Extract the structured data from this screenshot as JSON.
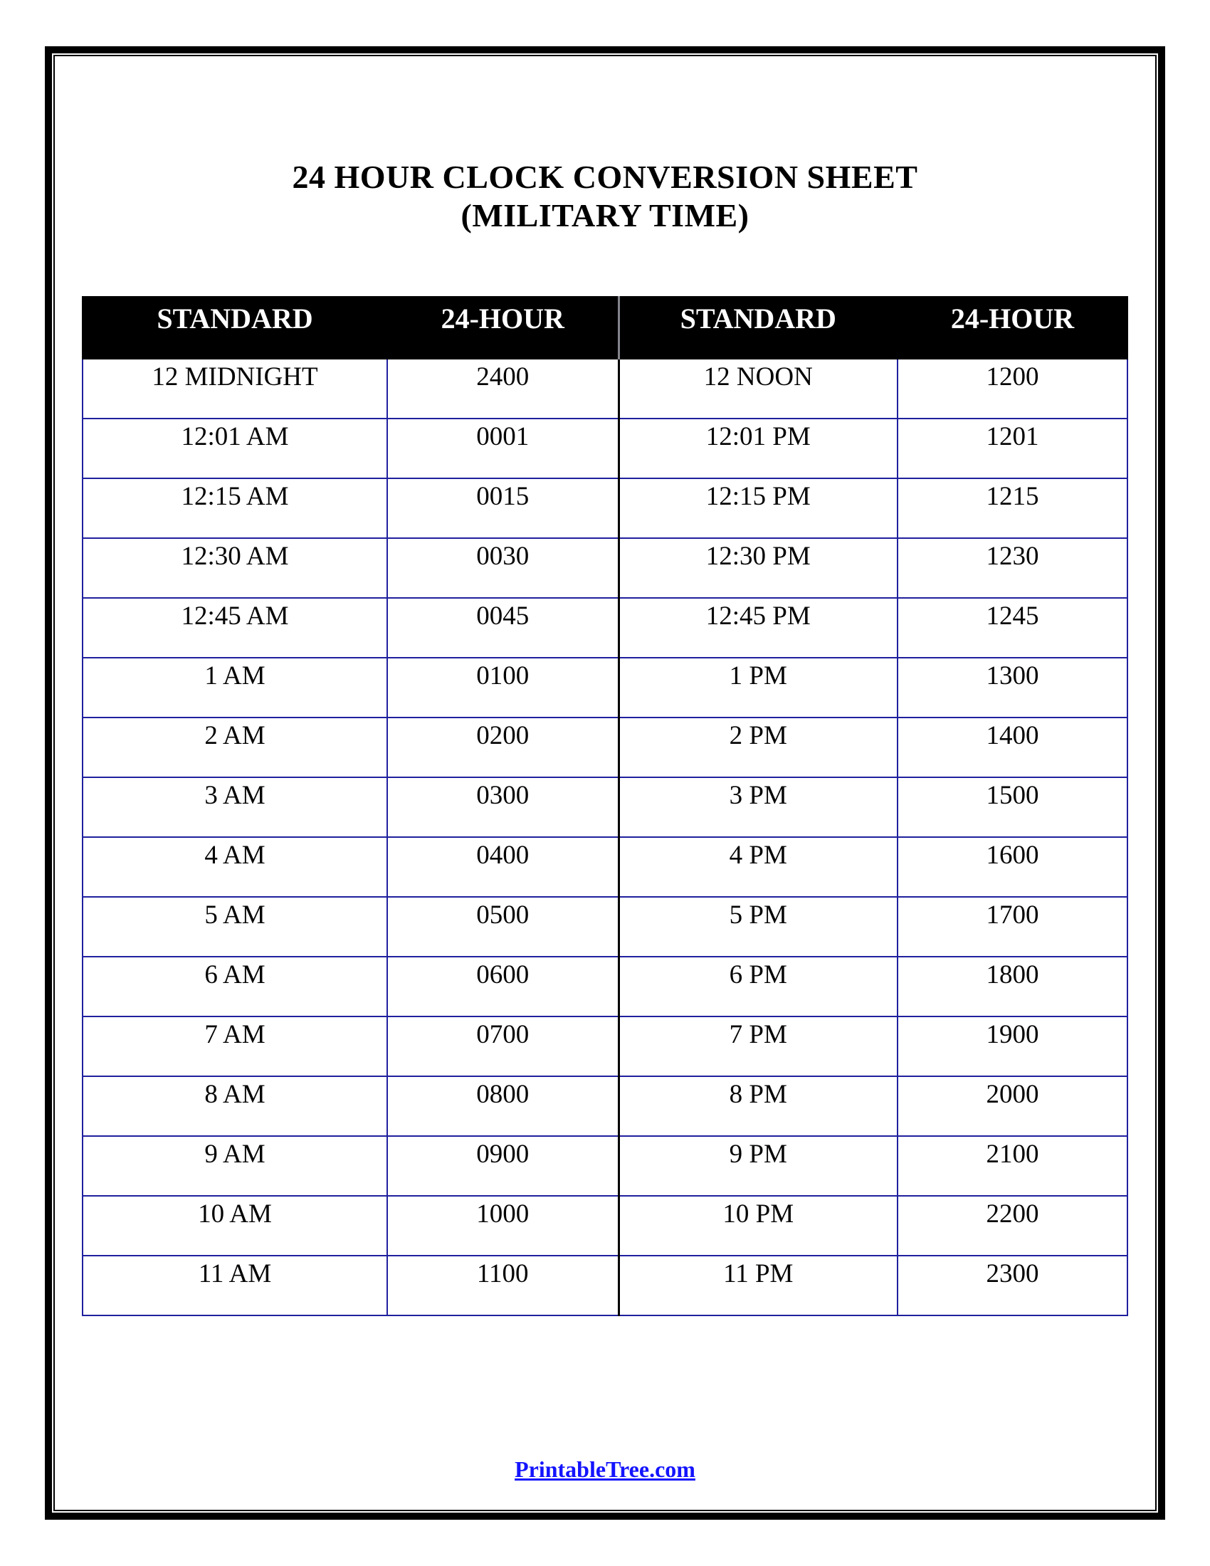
{
  "title": {
    "line1": "24 HOUR CLOCK CONVERSION SHEET",
    "line2": "(MILITARY TIME)"
  },
  "table": {
    "headers": [
      "STANDARD",
      "24-HOUR",
      "STANDARD",
      "24-HOUR"
    ],
    "rows": [
      [
        "12 MIDNIGHT",
        "2400",
        "12 NOON",
        "1200"
      ],
      [
        "12:01 AM",
        "0001",
        "12:01 PM",
        "1201"
      ],
      [
        "12:15 AM",
        "0015",
        "12:15 PM",
        "1215"
      ],
      [
        "12:30 AM",
        "0030",
        "12:30 PM",
        "1230"
      ],
      [
        "12:45 AM",
        "0045",
        "12:45 PM",
        "1245"
      ],
      [
        "1 AM",
        "0100",
        "1 PM",
        "1300"
      ],
      [
        "2 AM",
        "0200",
        "2 PM",
        "1400"
      ],
      [
        "3 AM",
        "0300",
        "3 PM",
        "1500"
      ],
      [
        "4 AM",
        "0400",
        "4 PM",
        "1600"
      ],
      [
        "5 AM",
        "0500",
        "5 PM",
        "1700"
      ],
      [
        "6 AM",
        "0600",
        "6 PM",
        "1800"
      ],
      [
        "7 AM",
        "0700",
        "7 PM",
        "1900"
      ],
      [
        "8 AM",
        "0800",
        "8 PM",
        "2000"
      ],
      [
        "9 AM",
        "0900",
        "9 PM",
        "2100"
      ],
      [
        "10 AM",
        "1000",
        "10 PM",
        "2200"
      ],
      [
        "11 AM",
        "1100",
        "11 PM",
        "2300"
      ]
    ]
  },
  "footer": {
    "link_label": "PrintableTree.com"
  },
  "colors": {
    "grid_blue": "#20209e",
    "center_divider": "#000000",
    "header_bg": "#000000",
    "header_text": "#ffffff",
    "link_blue": "#1414ff",
    "frame_black": "#000000"
  }
}
